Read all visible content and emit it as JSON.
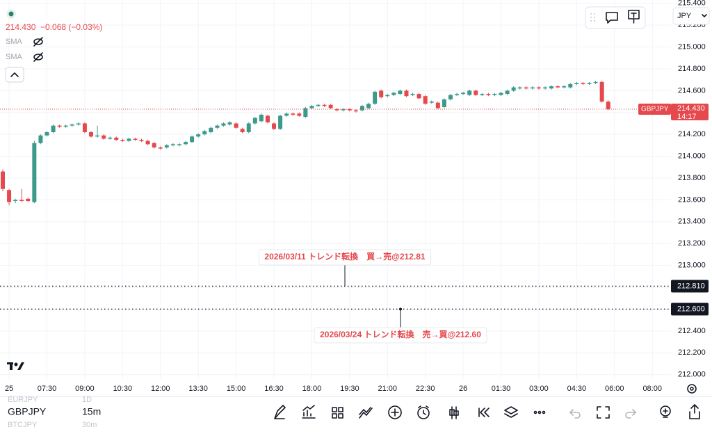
{
  "chart_data": {
    "type": "candlestick",
    "header": {
      "last": "214.430",
      "change": "−0.068 (−0.03%)",
      "indicators": [
        "SMA",
        "SMA"
      ],
      "currency": "JPY"
    },
    "categories": [
      null,
      "25",
      null,
      null,
      null,
      null,
      null,
      "07:30",
      null,
      null,
      null,
      null,
      null,
      "09:00",
      null,
      null,
      null,
      null,
      null,
      "10:30",
      null,
      null,
      null,
      null,
      null,
      "12:00",
      null,
      null,
      null,
      null,
      null,
      "13:30",
      null,
      null,
      null,
      null,
      null,
      "15:00",
      null,
      null,
      null,
      null,
      null,
      "16:30",
      null,
      null,
      null,
      null,
      null,
      "18:00",
      null,
      null,
      null,
      null,
      null,
      "19:30",
      null,
      null,
      null,
      null,
      null,
      "21:00",
      null,
      null,
      null,
      null,
      null,
      "22:30",
      null,
      null,
      null,
      null,
      null,
      "26",
      null,
      null,
      null,
      null,
      null,
      "01:30",
      null,
      null,
      null,
      null,
      null,
      "03:00",
      null,
      null,
      null,
      null,
      null,
      "04:30",
      null,
      null,
      null,
      null,
      null,
      "06:00",
      null,
      null,
      null,
      null,
      null,
      "08:00"
    ],
    "series": [
      {
        "name": "GBPJPY",
        "up_color": "#3d9a8b",
        "down_color": "#e5484d",
        "open": [
          213.86,
          213.69,
          213.59,
          213.6,
          213.61,
          213.58,
          214.12,
          214.19,
          214.22,
          214.28,
          214.27,
          214.28,
          214.29,
          214.3,
          214.22,
          214.18,
          214.19,
          214.16,
          214.17,
          214.15,
          214.14,
          214.16,
          214.15,
          214.14,
          214.12,
          214.08,
          214.08,
          214.1,
          214.1,
          214.11,
          214.13,
          214.18,
          214.2,
          214.22,
          214.26,
          214.28,
          214.29,
          214.3,
          214.25,
          214.22,
          214.3,
          214.32,
          214.37,
          214.3,
          214.25,
          214.37,
          214.39,
          214.39,
          214.36,
          214.44,
          214.46,
          214.47,
          214.47,
          214.43,
          214.42,
          214.43,
          214.42,
          214.42,
          214.44,
          214.48,
          214.6,
          214.55,
          214.56,
          214.57,
          214.6,
          214.56,
          214.57,
          214.55,
          214.49,
          214.49,
          214.45,
          214.52,
          214.56,
          214.57,
          214.56,
          214.6,
          214.56,
          214.57,
          214.56,
          214.56,
          214.57,
          214.6,
          214.62,
          214.63,
          214.62,
          214.63,
          214.62,
          214.62,
          214.64,
          214.63,
          214.63,
          214.66,
          214.67,
          214.66,
          214.67,
          214.68,
          214.5,
          null,
          null,
          null,
          null,
          null,
          null,
          null
        ],
        "high": [
          213.88,
          213.7,
          213.61,
          213.7,
          213.62,
          214.14,
          214.2,
          214.23,
          214.29,
          214.29,
          214.29,
          214.3,
          214.31,
          214.31,
          214.23,
          214.28,
          214.2,
          214.18,
          214.18,
          214.16,
          214.17,
          214.17,
          214.16,
          214.15,
          214.13,
          214.09,
          214.11,
          214.12,
          214.12,
          214.14,
          214.19,
          214.21,
          214.24,
          214.27,
          214.29,
          214.31,
          214.32,
          214.31,
          214.26,
          214.31,
          214.36,
          214.39,
          214.38,
          214.31,
          214.38,
          214.4,
          214.4,
          214.4,
          214.45,
          214.47,
          214.48,
          214.48,
          214.48,
          214.44,
          214.44,
          214.44,
          214.43,
          214.47,
          214.49,
          214.6,
          214.61,
          214.57,
          214.59,
          214.61,
          214.61,
          214.58,
          214.58,
          214.56,
          214.51,
          214.5,
          214.53,
          214.57,
          214.58,
          214.59,
          214.61,
          214.61,
          214.58,
          214.58,
          214.58,
          214.59,
          214.61,
          214.64,
          214.64,
          214.64,
          214.64,
          214.64,
          214.64,
          214.65,
          214.65,
          214.65,
          214.67,
          214.68,
          214.68,
          214.68,
          214.69,
          214.69,
          214.51,
          null,
          null,
          null,
          null,
          null,
          null,
          null
        ],
        "low": [
          213.68,
          213.55,
          213.57,
          213.58,
          213.58,
          213.57,
          214.11,
          214.18,
          214.21,
          214.26,
          214.26,
          214.27,
          214.28,
          214.21,
          214.17,
          214.17,
          214.15,
          214.15,
          214.14,
          214.13,
          214.13,
          214.14,
          214.13,
          214.1,
          214.07,
          214.06,
          214.07,
          214.09,
          214.09,
          214.1,
          214.12,
          214.17,
          214.19,
          214.21,
          214.25,
          214.27,
          214.28,
          214.25,
          214.21,
          214.21,
          214.29,
          214.31,
          214.3,
          214.24,
          214.24,
          214.36,
          214.37,
          214.36,
          214.35,
          214.43,
          214.45,
          214.45,
          214.43,
          214.41,
          214.41,
          214.41,
          214.4,
          214.41,
          214.43,
          214.47,
          214.53,
          214.54,
          214.55,
          214.56,
          214.54,
          214.55,
          214.52,
          214.47,
          214.48,
          214.43,
          214.44,
          214.51,
          214.55,
          214.56,
          214.55,
          214.55,
          214.55,
          214.55,
          214.55,
          214.55,
          214.56,
          214.59,
          214.61,
          214.61,
          214.61,
          214.61,
          214.61,
          214.61,
          214.62,
          214.62,
          214.62,
          214.65,
          214.65,
          214.65,
          214.66,
          214.49,
          214.42,
          null,
          null,
          null,
          null,
          null,
          null,
          null
        ],
        "close": [
          213.7,
          213.58,
          213.6,
          213.59,
          213.59,
          214.12,
          214.19,
          214.22,
          214.28,
          214.27,
          214.28,
          214.29,
          214.3,
          214.22,
          214.18,
          214.19,
          214.16,
          214.17,
          214.15,
          214.14,
          214.16,
          214.15,
          214.14,
          214.11,
          214.08,
          214.07,
          214.1,
          214.11,
          214.11,
          214.13,
          214.18,
          214.2,
          214.23,
          214.26,
          214.28,
          214.3,
          214.31,
          214.26,
          214.22,
          214.3,
          214.35,
          214.38,
          214.31,
          214.25,
          214.37,
          214.39,
          214.38,
          214.37,
          214.44,
          214.46,
          214.47,
          214.46,
          214.44,
          214.42,
          214.43,
          214.42,
          214.41,
          214.46,
          214.48,
          214.59,
          214.54,
          214.56,
          214.58,
          214.6,
          214.55,
          214.57,
          214.53,
          214.48,
          214.5,
          214.44,
          214.52,
          214.56,
          214.57,
          214.58,
          214.6,
          214.56,
          214.57,
          214.56,
          214.57,
          214.58,
          214.6,
          214.63,
          214.63,
          214.62,
          214.63,
          214.62,
          214.63,
          214.64,
          214.63,
          214.64,
          214.66,
          214.67,
          214.66,
          214.67,
          214.68,
          214.5,
          214.43,
          null,
          null,
          null,
          null,
          null,
          null,
          null
        ]
      }
    ],
    "ylim": [
      211.96,
      215.43
    ],
    "yticks": [
      {
        "value": 212.0,
        "label": "212.000"
      },
      {
        "value": 212.2,
        "label": "212.200"
      },
      {
        "value": 212.4,
        "label": "212.400"
      },
      {
        "value": 212.6,
        "label": "212.600"
      },
      {
        "value": 212.8,
        "label": "212.800"
      },
      {
        "value": 213.0,
        "label": "213.000"
      },
      {
        "value": 213.2,
        "label": "213.200"
      },
      {
        "value": 213.4,
        "label": "213.400"
      },
      {
        "value": 213.6,
        "label": "213.600"
      },
      {
        "value": 213.8,
        "label": "213.800"
      },
      {
        "value": 214.0,
        "label": "214.000"
      },
      {
        "value": 214.2,
        "label": "214.200"
      },
      {
        "value": 214.4,
        "label": "214.400"
      },
      {
        "value": 214.6,
        "label": "214.600"
      },
      {
        "value": 214.8,
        "label": "214.800"
      },
      {
        "value": 215.0,
        "label": "215.000"
      },
      {
        "value": 215.2,
        "label": "215.200"
      },
      {
        "value": 215.4,
        "label": "215.400"
      }
    ],
    "grid": true,
    "last_price": {
      "value": 214.43,
      "label": "214.430",
      "symbol": "GBPJPY",
      "countdown": "14:17",
      "color": "#e5484d"
    },
    "hlines": [
      {
        "value": 212.81,
        "label": "212.810",
        "note": "2026/03/11 トレンド転換　買→売@212.81"
      },
      {
        "value": 212.6,
        "label": "212.600",
        "note": "2026/03/24 トレンド転換　売→買@212.60"
      }
    ],
    "watchlist": [
      {
        "symbol": "EURJPY",
        "interval": "1D"
      },
      {
        "symbol": "GBPJPY",
        "interval": "15m"
      },
      {
        "symbol": "BTCJPY",
        "interval": "30m"
      }
    ]
  }
}
